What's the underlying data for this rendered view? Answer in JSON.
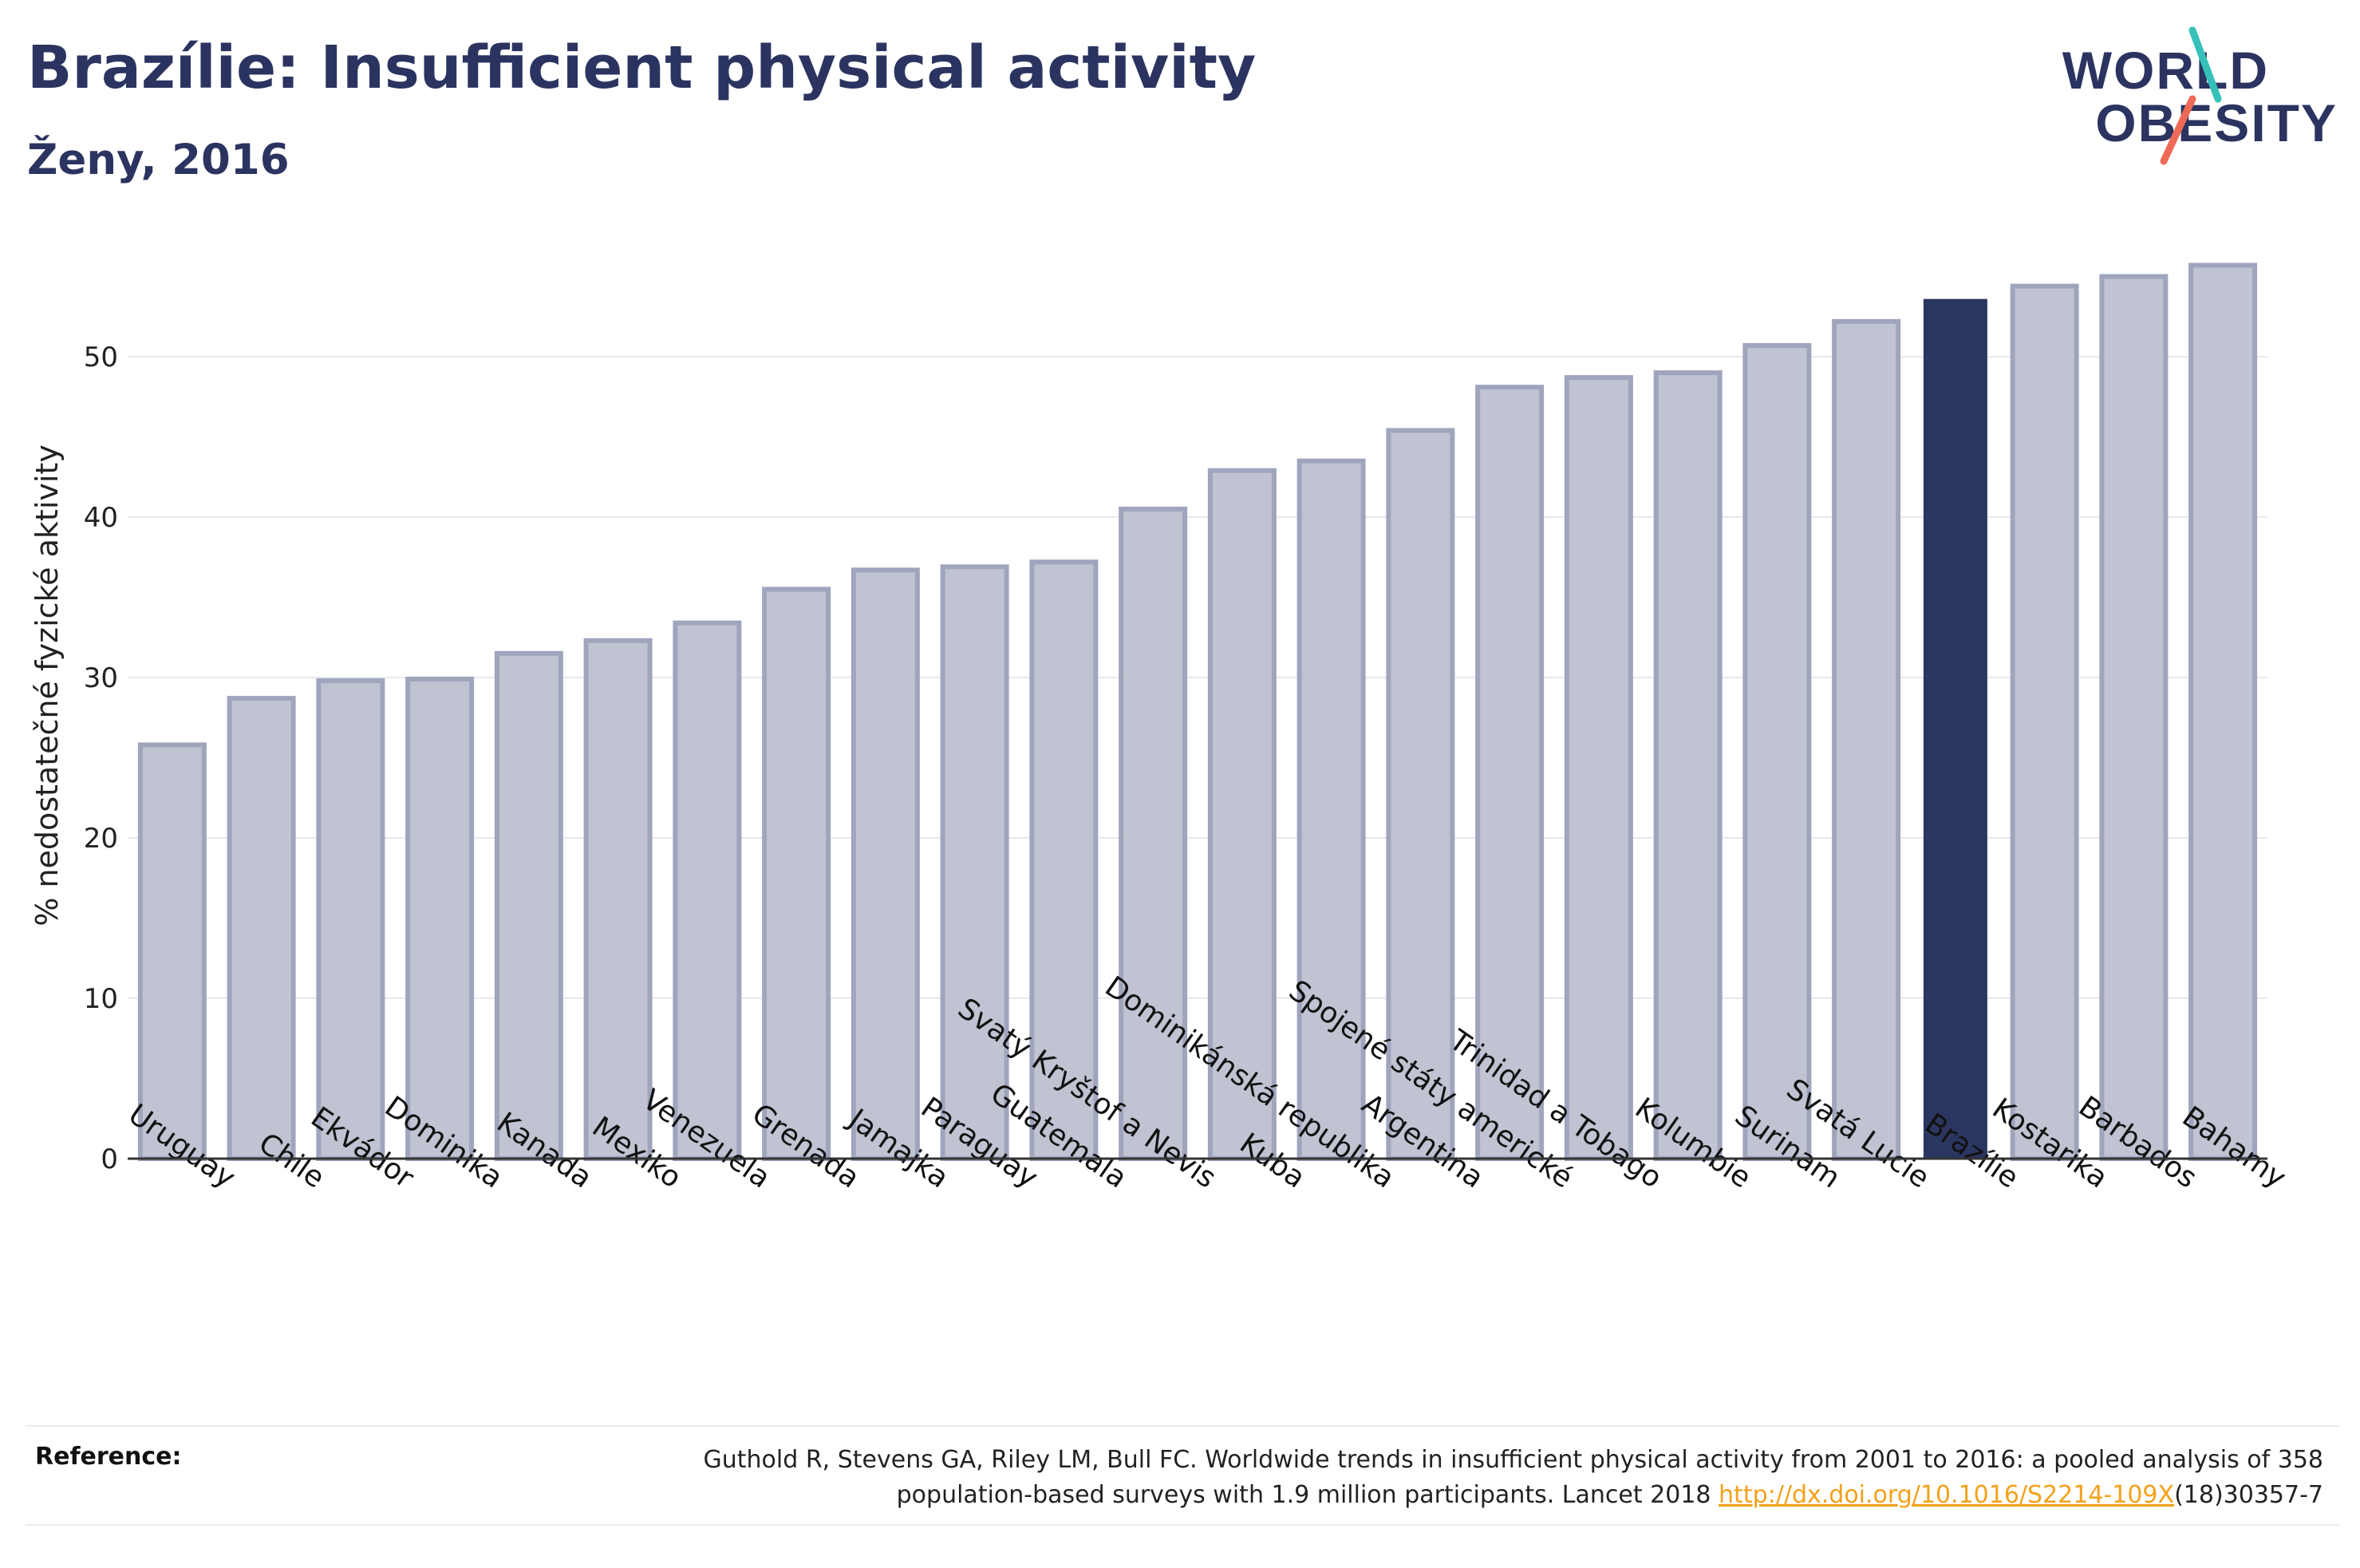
{
  "header": {
    "title": "Brazílie: Insufficient physical activity",
    "subtitle": "Ženy, 2016"
  },
  "logo": {
    "line1": "WORLD",
    "line2": "OBESITY",
    "accent_colors": [
      "#35c0b9",
      "#ef6a56"
    ]
  },
  "chart_data": {
    "type": "bar",
    "ylabel": "% nedostatečné fyzické aktivity",
    "ylim": [
      0,
      60
    ],
    "yticks": [
      0,
      10,
      20,
      30,
      40,
      50
    ],
    "grid": true,
    "categories": [
      "Uruguay",
      "Chile",
      "Ekvádor",
      "Dominika",
      "Kanada",
      "Mexiko",
      "Venezuela",
      "Grenada",
      "Jamajka",
      "Paraguay",
      "Guatemala",
      "Svatý Kryštof a Nevis",
      "Kuba",
      "Dominikánská republika",
      "Argentina",
      "Spojené státy americké",
      "Trinidad a Tobago",
      "Kolumbie",
      "Surinam",
      "Svatá Lucie",
      "Brazílie",
      "Kostarika",
      "Barbados",
      "Bahamy"
    ],
    "values": [
      25.8,
      28.7,
      29.8,
      29.9,
      31.5,
      32.3,
      33.4,
      35.5,
      36.7,
      36.9,
      37.2,
      40.5,
      42.9,
      43.5,
      45.4,
      48.1,
      48.7,
      49.0,
      50.7,
      52.2,
      53.6,
      54.4,
      55.0,
      55.7
    ],
    "highlight": "Brazílie",
    "colors": {
      "bar_fill": "#c0c3d1",
      "bar_border": "#9fa5bd",
      "highlight": "#2b3660",
      "grid": "#e8e8ee",
      "axis": "#333333"
    }
  },
  "reference": {
    "label": "Reference:",
    "text_line1": "Guthold R, Stevens GA, Riley LM, Bull FC. Worldwide trends in insufficient physical activity from 2001 to 2016: a pooled analysis of 358",
    "text_line2_prefix": "population-based surveys with 1.9 million participants. Lancet 2018 ",
    "link": "http://dx.doi.org/10.1016/S2214-109X",
    "text_line2_suffix": "(18)30357-7"
  }
}
